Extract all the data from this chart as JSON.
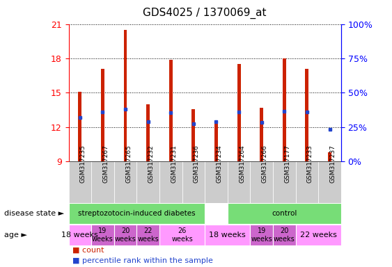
{
  "title": "GDS4025 / 1370069_at",
  "samples": [
    "GSM317235",
    "GSM317267",
    "GSM317265",
    "GSM317232",
    "GSM317231",
    "GSM317236",
    "GSM317234",
    "GSM317264",
    "GSM317266",
    "GSM317177",
    "GSM317233",
    "GSM317237"
  ],
  "count_values": [
    15.1,
    17.1,
    20.5,
    14.0,
    17.9,
    13.6,
    12.3,
    17.5,
    13.7,
    18.0,
    17.1,
    9.8
  ],
  "percentile_values": [
    12.85,
    13.35,
    13.55,
    12.5,
    13.25,
    12.3,
    12.5,
    13.3,
    12.4,
    13.4,
    13.35,
    11.8
  ],
  "ymin": 9,
  "ymax": 21,
  "yticks": [
    9,
    12,
    15,
    18,
    21
  ],
  "bar_color": "#cc2200",
  "percentile_color": "#2244cc",
  "right_yticks": [
    0,
    25,
    50,
    75,
    100
  ],
  "right_yticklabels": [
    "0%",
    "25%",
    "50%",
    "75%",
    "100%"
  ],
  "disease_groups": [
    {
      "label": "streptozotocin-induced diabetes",
      "xstart": -0.5,
      "xend": 5.5,
      "color": "#77dd77"
    },
    {
      "label": "control",
      "xstart": 6.5,
      "xend": 11.5,
      "color": "#77dd77"
    }
  ],
  "age_groups": [
    {
      "label": "18 weeks",
      "xstart": -0.5,
      "xend": 0.5,
      "color": "#ff99ff",
      "fontsize": 8
    },
    {
      "label": "19\nweeks",
      "xstart": 0.5,
      "xend": 1.5,
      "color": "#cc66cc",
      "fontsize": 7
    },
    {
      "label": "20\nweeks",
      "xstart": 1.5,
      "xend": 2.5,
      "color": "#cc66cc",
      "fontsize": 7
    },
    {
      "label": "22\nweeks",
      "xstart": 2.5,
      "xend": 3.5,
      "color": "#cc66cc",
      "fontsize": 7
    },
    {
      "label": "26\nweeks",
      "xstart": 3.5,
      "xend": 5.5,
      "color": "#ff99ff",
      "fontsize": 7
    },
    {
      "label": "18 weeks",
      "xstart": 5.5,
      "xend": 7.5,
      "color": "#ff99ff",
      "fontsize": 8
    },
    {
      "label": "19\nweeks",
      "xstart": 7.5,
      "xend": 8.5,
      "color": "#cc66cc",
      "fontsize": 7
    },
    {
      "label": "20\nweeks",
      "xstart": 8.5,
      "xend": 9.5,
      "color": "#cc66cc",
      "fontsize": 7
    },
    {
      "label": "22 weeks",
      "xstart": 9.5,
      "xend": 11.5,
      "color": "#ff99ff",
      "fontsize": 8
    }
  ],
  "legend_count_label": "count",
  "legend_percentile_label": "percentile rank within the sample",
  "disease_state_label": "disease state",
  "age_label": "age",
  "bar_width": 0.15,
  "tick_label_fontsize": 6.5,
  "tick_bg_color": "#cccccc"
}
